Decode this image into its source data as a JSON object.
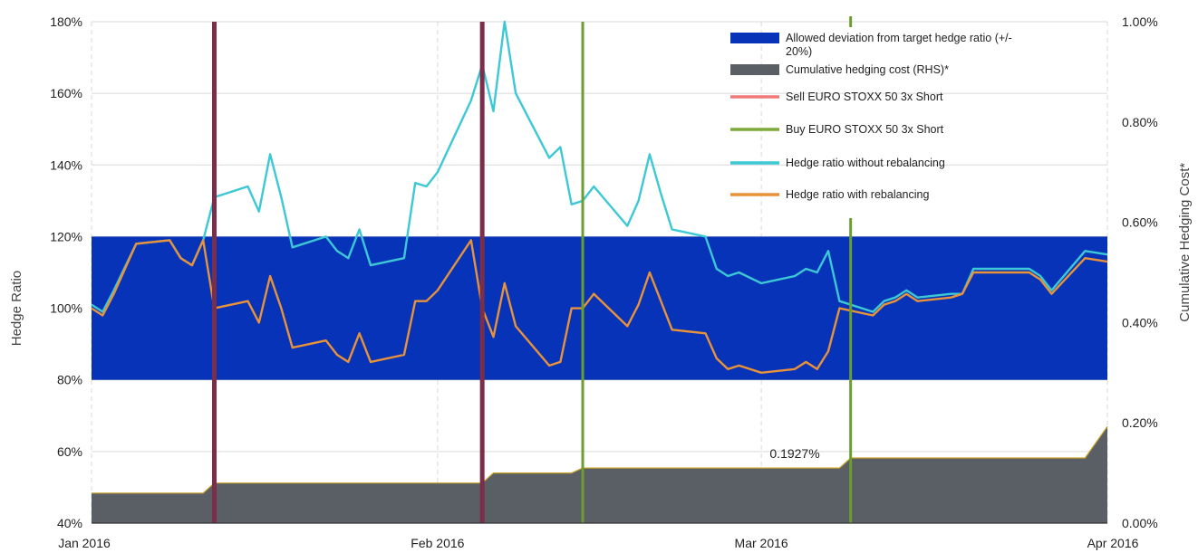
{
  "chart_data": {
    "type": "line",
    "title": "",
    "xlabel": "",
    "ylabel": "Hedge Ratio",
    "y2label": "Cumulative Hedging Cost*",
    "ylim": [
      0.4,
      1.8
    ],
    "y2lim": [
      0.0,
      1.0
    ],
    "x_range": [
      "2016-01-01",
      "2016-04-01"
    ],
    "y_ticks": [
      "40%",
      "60%",
      "80%",
      "100%",
      "120%",
      "140%",
      "160%",
      "180%"
    ],
    "y2_ticks": [
      "0.00%",
      "0.20%",
      "0.40%",
      "0.60%",
      "0.80%",
      "1.00%"
    ],
    "x_ticks": [
      {
        "date": "2016-01-01",
        "label": "Jan 2016"
      },
      {
        "date": "2016-02-01",
        "label": "Feb 2016"
      },
      {
        "date": "2016-03-01",
        "label": "Mar 2016"
      },
      {
        "date": "2016-04-01",
        "label": "Apr 2016"
      }
    ],
    "grid": {
      "vertical": true,
      "horizontal": true
    },
    "band": {
      "name": "Allowed deviation from target hedge ratio (+/- 20%)",
      "low": 0.8,
      "high": 1.2,
      "color": "#0733B8"
    },
    "sell_events": [
      "2016-01-12",
      "2016-02-05"
    ],
    "buy_events": [
      "2016-02-14",
      "2016-03-09"
    ],
    "annotation": {
      "text": "0.1927%",
      "date": "2016-03-05",
      "y": 0.59
    },
    "series": [
      {
        "name": "Hedge ratio without rebalancing",
        "color": "#3CC8D4",
        "points": [
          [
            "2016-01-01",
            1.01
          ],
          [
            "2016-01-02",
            0.99
          ],
          [
            "2016-01-03",
            1.05
          ],
          [
            "2016-01-05",
            1.18
          ],
          [
            "2016-01-08",
            1.19
          ],
          [
            "2016-01-09",
            1.14
          ],
          [
            "2016-01-10",
            1.12
          ],
          [
            "2016-01-11",
            1.19
          ],
          [
            "2016-01-12",
            1.31
          ],
          [
            "2016-01-15",
            1.34
          ],
          [
            "2016-01-16",
            1.27
          ],
          [
            "2016-01-17",
            1.43
          ],
          [
            "2016-01-18",
            1.31
          ],
          [
            "2016-01-19",
            1.17
          ],
          [
            "2016-01-22",
            1.2
          ],
          [
            "2016-01-23",
            1.16
          ],
          [
            "2016-01-24",
            1.14
          ],
          [
            "2016-01-25",
            1.22
          ],
          [
            "2016-01-26",
            1.12
          ],
          [
            "2016-01-29",
            1.14
          ],
          [
            "2016-01-30",
            1.35
          ],
          [
            "2016-01-31",
            1.34
          ],
          [
            "2016-02-01",
            1.38
          ],
          [
            "2016-02-04",
            1.58
          ],
          [
            "2016-02-05",
            1.68
          ],
          [
            "2016-02-06",
            1.55
          ],
          [
            "2016-02-07",
            1.8
          ],
          [
            "2016-02-08",
            1.6
          ],
          [
            "2016-02-11",
            1.42
          ],
          [
            "2016-02-12",
            1.45
          ],
          [
            "2016-02-13",
            1.29
          ],
          [
            "2016-02-14",
            1.3
          ],
          [
            "2016-02-15",
            1.34
          ],
          [
            "2016-02-18",
            1.23
          ],
          [
            "2016-02-19",
            1.3
          ],
          [
            "2016-02-20",
            1.43
          ],
          [
            "2016-02-21",
            1.32
          ],
          [
            "2016-02-22",
            1.22
          ],
          [
            "2016-02-25",
            1.2
          ],
          [
            "2016-02-26",
            1.11
          ],
          [
            "2016-02-27",
            1.09
          ],
          [
            "2016-02-28",
            1.1
          ],
          [
            "2016-03-01",
            1.07
          ],
          [
            "2016-03-04",
            1.09
          ],
          [
            "2016-03-05",
            1.11
          ],
          [
            "2016-03-06",
            1.1
          ],
          [
            "2016-03-07",
            1.16
          ],
          [
            "2016-03-08",
            1.02
          ],
          [
            "2016-03-11",
            0.99
          ],
          [
            "2016-03-12",
            1.02
          ],
          [
            "2016-03-13",
            1.03
          ],
          [
            "2016-03-14",
            1.05
          ],
          [
            "2016-03-15",
            1.03
          ],
          [
            "2016-03-18",
            1.04
          ],
          [
            "2016-03-19",
            1.04
          ],
          [
            "2016-03-20",
            1.11
          ],
          [
            "2016-03-25",
            1.11
          ],
          [
            "2016-03-26",
            1.09
          ],
          [
            "2016-03-27",
            1.05
          ],
          [
            "2016-03-30",
            1.16
          ],
          [
            "2016-04-01",
            1.15
          ]
        ]
      },
      {
        "name": "Hedge ratio with rebalancing",
        "color": "#E8923A",
        "points": [
          [
            "2016-01-01",
            1.0
          ],
          [
            "2016-01-02",
            0.98
          ],
          [
            "2016-01-03",
            1.04
          ],
          [
            "2016-01-05",
            1.18
          ],
          [
            "2016-01-08",
            1.19
          ],
          [
            "2016-01-09",
            1.14
          ],
          [
            "2016-01-10",
            1.12
          ],
          [
            "2016-01-11",
            1.19
          ],
          [
            "2016-01-12",
            1.0
          ],
          [
            "2016-01-15",
            1.02
          ],
          [
            "2016-01-16",
            0.96
          ],
          [
            "2016-01-17",
            1.09
          ],
          [
            "2016-01-18",
            1.0
          ],
          [
            "2016-01-19",
            0.89
          ],
          [
            "2016-01-22",
            0.91
          ],
          [
            "2016-01-23",
            0.87
          ],
          [
            "2016-01-24",
            0.85
          ],
          [
            "2016-01-25",
            0.93
          ],
          [
            "2016-01-26",
            0.85
          ],
          [
            "2016-01-29",
            0.87
          ],
          [
            "2016-01-30",
            1.02
          ],
          [
            "2016-01-31",
            1.02
          ],
          [
            "2016-02-01",
            1.05
          ],
          [
            "2016-02-04",
            1.19
          ],
          [
            "2016-02-05",
            1.0
          ],
          [
            "2016-02-06",
            0.92
          ],
          [
            "2016-02-07",
            1.07
          ],
          [
            "2016-02-08",
            0.95
          ],
          [
            "2016-02-11",
            0.84
          ],
          [
            "2016-02-12",
            0.85
          ],
          [
            "2016-02-13",
            1.0
          ],
          [
            "2016-02-14",
            1.0
          ],
          [
            "2016-02-15",
            1.04
          ],
          [
            "2016-02-18",
            0.95
          ],
          [
            "2016-02-19",
            1.01
          ],
          [
            "2016-02-20",
            1.1
          ],
          [
            "2016-02-21",
            1.02
          ],
          [
            "2016-02-22",
            0.94
          ],
          [
            "2016-02-25",
            0.93
          ],
          [
            "2016-02-26",
            0.86
          ],
          [
            "2016-02-27",
            0.83
          ],
          [
            "2016-02-28",
            0.84
          ],
          [
            "2016-03-01",
            0.82
          ],
          [
            "2016-03-04",
            0.83
          ],
          [
            "2016-03-05",
            0.85
          ],
          [
            "2016-03-06",
            0.83
          ],
          [
            "2016-03-07",
            0.88
          ],
          [
            "2016-03-08",
            1.0
          ],
          [
            "2016-03-11",
            0.98
          ],
          [
            "2016-03-12",
            1.01
          ],
          [
            "2016-03-13",
            1.02
          ],
          [
            "2016-03-14",
            1.04
          ],
          [
            "2016-03-15",
            1.02
          ],
          [
            "2016-03-18",
            1.03
          ],
          [
            "2016-03-19",
            1.04
          ],
          [
            "2016-03-20",
            1.1
          ],
          [
            "2016-03-25",
            1.1
          ],
          [
            "2016-03-26",
            1.08
          ],
          [
            "2016-03-27",
            1.04
          ],
          [
            "2016-03-30",
            1.14
          ],
          [
            "2016-04-01",
            1.13
          ]
        ]
      }
    ],
    "cost_series": {
      "name": "Cumulative hedging cost (RHS)*",
      "color": "#5A5F66",
      "axis": "right",
      "points": [
        [
          "2016-01-01",
          0.0006
        ],
        [
          "2016-01-11",
          0.0006
        ],
        [
          "2016-01-12",
          0.0008
        ],
        [
          "2016-02-05",
          0.0008
        ],
        [
          "2016-02-06",
          0.001
        ],
        [
          "2016-02-13",
          0.001
        ],
        [
          "2016-02-14",
          0.0011
        ],
        [
          "2016-03-08",
          0.0011
        ],
        [
          "2016-03-09",
          0.0013
        ],
        [
          "2016-03-30",
          0.0013
        ],
        [
          "2016-04-01",
          0.001927
        ]
      ]
    },
    "legend": {
      "placement": "top-right",
      "items": [
        {
          "label": "Allowed deviation from target hedge ratio (+/-",
          "label2": "20%)",
          "color": "#0733B8",
          "kind": "band"
        },
        {
          "label": "Cumulative hedging cost (RHS)*",
          "color": "#5A5F66",
          "kind": "band"
        },
        {
          "label": "Sell EURO STOXX 50 3x Short",
          "color": "#F07A7A",
          "kind": "line"
        },
        {
          "label": "Buy EURO STOXX 50 3x Short",
          "color": "#7DAA3A",
          "kind": "line"
        },
        {
          "label": "Hedge ratio without rebalancing",
          "color": "#3CC8D4",
          "kind": "line"
        },
        {
          "label": "Hedge ratio with rebalancing",
          "color": "#E8923A",
          "kind": "line"
        }
      ]
    },
    "colors": {
      "sell_event_line": "#7A2E49",
      "buy_event_line": "#6A9E2F",
      "grid": "#D9D9D9"
    }
  }
}
